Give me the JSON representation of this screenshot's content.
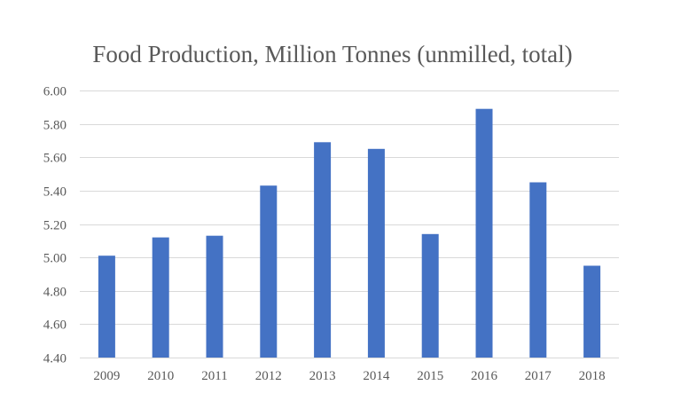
{
  "chart_data": {
    "type": "bar",
    "title": "Food Production, Million Tonnes (unmilled, total)",
    "xlabel": "",
    "ylabel": "",
    "categories": [
      "2009",
      "2010",
      "2011",
      "2012",
      "2013",
      "2014",
      "2015",
      "2016",
      "2017",
      "2018"
    ],
    "values": [
      5.01,
      5.12,
      5.13,
      5.43,
      5.69,
      5.65,
      5.14,
      5.89,
      5.45,
      4.95
    ],
    "ylim": [
      4.4,
      6.0
    ],
    "yticks": [
      4.4,
      4.6,
      4.8,
      5.0,
      5.2,
      5.4,
      5.6,
      5.8,
      6.0
    ],
    "ytick_labels": [
      "4.40",
      "4.60",
      "4.80",
      "5.00",
      "5.20",
      "5.40",
      "5.60",
      "5.80",
      "6.00"
    ],
    "grid": true,
    "legend": "none",
    "bar_color": "#4472c4",
    "grid_color": "#d9d9d9",
    "text_color": "#595959"
  }
}
